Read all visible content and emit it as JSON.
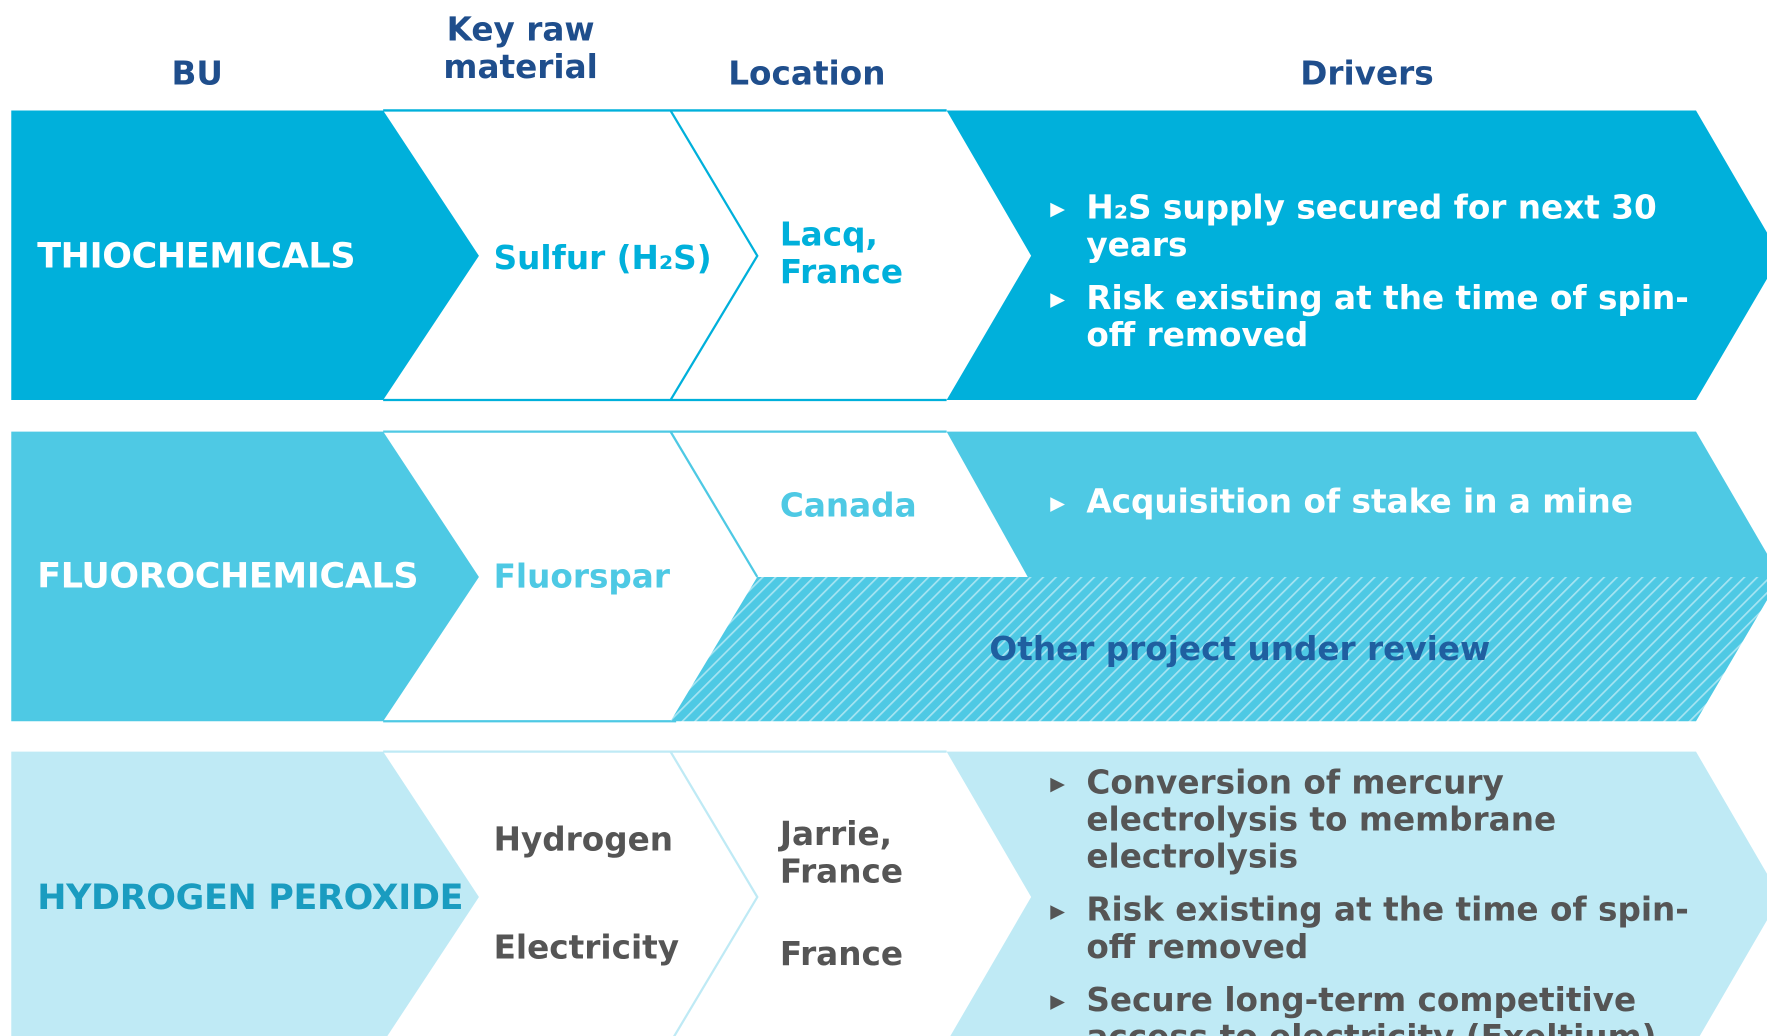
{
  "headers": [
    "BU",
    "Key raw material",
    "Location",
    "Drivers"
  ],
  "rows": [
    {
      "bu": "THIOCHEMICALS",
      "materials": [
        "Sulfur (H₂S)"
      ],
      "locations": [
        "Lacq, France"
      ],
      "drivers": [
        "H₂S supply secured for next 30 years",
        "Risk existing at the time of spin-off removed"
      ]
    },
    {
      "bu": "FLUOROCHEMICALS",
      "materials": [
        "Fluorspar"
      ],
      "locations": [
        "Canada"
      ],
      "drivers": [
        "Acquisition of stake in a mine"
      ],
      "note": "Other project under review"
    },
    {
      "bu": "HYDROGEN PEROXIDE",
      "materials": [
        "Hydrogen",
        "Electricity"
      ],
      "locations": [
        "Jarrie, France",
        "France"
      ],
      "drivers": [
        "Conversion of mercury electrolysis to membrane electrolysis",
        "Risk existing at the time of spin-off removed",
        "Secure long-term competitive access to electricity (Exeltium)"
      ]
    }
  ]
}
